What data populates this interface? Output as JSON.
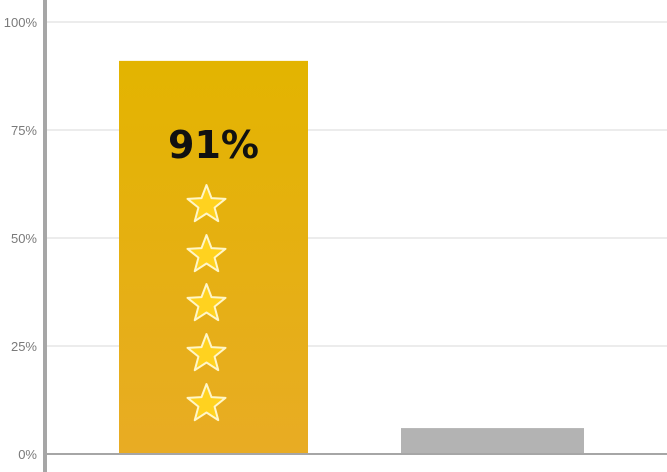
{
  "chart_data": {
    "type": "bar",
    "categories": [
      "",
      ""
    ],
    "values": [
      91,
      6
    ],
    "data_labels": [
      "91%",
      ""
    ],
    "ylim": [
      0,
      100
    ],
    "yticks": [
      0,
      25,
      50,
      75,
      100
    ],
    "ytick_labels": [
      "0%",
      "25%",
      "50%",
      "75%",
      "100%"
    ],
    "grid": true,
    "colors": {
      "bar_primary_top": "#e3b400",
      "bar_primary_bottom": "#e8ac24",
      "bar_secondary": "#b3b3b3",
      "star_fill": "#ffd21f",
      "star_stroke": "#fff6c8",
      "gridline": "#e6e6e6",
      "axis": "#a6a6a6"
    },
    "rating": {
      "stars": 5,
      "icon": "star-icon"
    }
  }
}
